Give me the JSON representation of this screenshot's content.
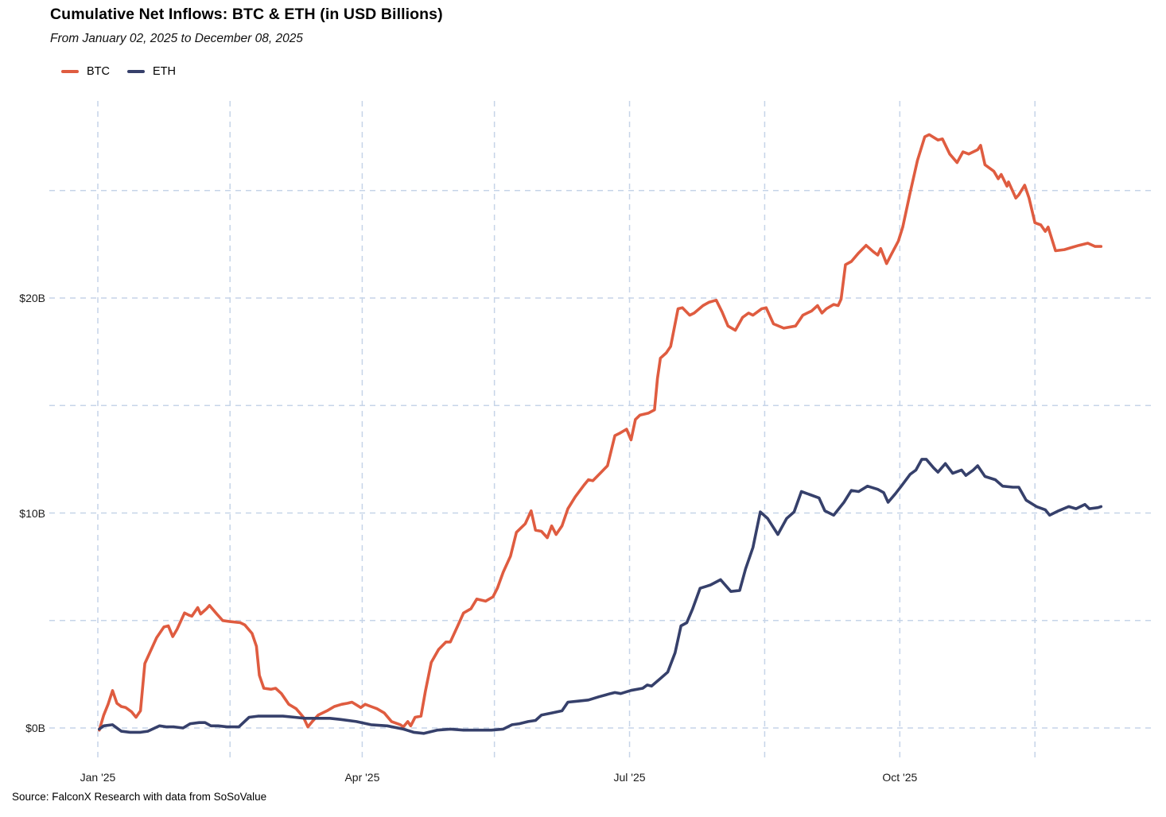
{
  "header": {
    "title": "Cumulative Net Inflows: BTC & ETH (in USD Billions)",
    "subtitle": "From January 02, 2025 to December 08, 2025"
  },
  "legend": [
    {
      "label": "BTC",
      "color": "#DF5C40"
    },
    {
      "label": "ETH",
      "color": "#36406B"
    }
  ],
  "footer": {
    "source": "Source: FalconX Research with data from SoSoValue"
  },
  "colors": {
    "gridline": "#C6D4E8",
    "background": "#FFFFFF"
  },
  "chart_data": {
    "type": "line",
    "title": "Cumulative Net Inflows: BTC & ETH (in USD Billions)",
    "subtitle": "From January 02, 2025 to December 08, 2025",
    "xlabel": "",
    "ylabel": "USD Billions",
    "x_unit": "days since 2025-01-01",
    "xlim": [
      0,
      341.5
    ],
    "ylim": [
      -1,
      28.5
    ],
    "grid": true,
    "grid_style": "dashed",
    "legend_position": "top-left",
    "x_ticks": [
      {
        "day": 0,
        "label": "Jan '25"
      },
      {
        "day": 90,
        "label": "Apr '25"
      },
      {
        "day": 181,
        "label": "Jul '25"
      },
      {
        "day": 273,
        "label": "Oct '25"
      }
    ],
    "x_gridline_days": [
      0,
      45,
      90,
      135,
      181,
      227,
      273,
      319
    ],
    "y_ticks": [
      {
        "value": 0,
        "label": "$0B"
      },
      {
        "value": 10,
        "label": "$10B"
      },
      {
        "value": 20,
        "label": "$20B"
      }
    ],
    "y_gridline_values": [
      0,
      5,
      10,
      15,
      20,
      25
    ],
    "series": [
      {
        "name": "BTC",
        "color": "#DF5C40",
        "points": [
          [
            0.5,
            -0.1
          ],
          [
            2,
            0.6
          ],
          [
            3.5,
            1.1
          ],
          [
            5,
            1.74
          ],
          [
            6.5,
            1.15
          ],
          [
            8,
            1.0
          ],
          [
            9.5,
            0.95
          ],
          [
            11.5,
            0.75
          ],
          [
            13,
            0.5
          ],
          [
            14.5,
            0.8
          ],
          [
            16,
            3.0
          ],
          [
            18,
            3.6
          ],
          [
            20,
            4.2
          ],
          [
            22.5,
            4.7
          ],
          [
            24,
            4.75
          ],
          [
            25.5,
            4.25
          ],
          [
            27,
            4.6
          ],
          [
            29.5,
            5.35
          ],
          [
            31,
            5.25
          ],
          [
            32,
            5.2
          ],
          [
            34,
            5.6
          ],
          [
            35,
            5.3
          ],
          [
            37,
            5.55
          ],
          [
            38,
            5.7
          ],
          [
            40.5,
            5.3
          ],
          [
            42.5,
            5.0
          ],
          [
            45,
            4.95
          ],
          [
            48.5,
            4.9
          ],
          [
            50,
            4.8
          ],
          [
            52.5,
            4.4
          ],
          [
            54,
            3.8
          ],
          [
            55,
            2.45
          ],
          [
            56.5,
            1.85
          ],
          [
            59,
            1.8
          ],
          [
            60.5,
            1.85
          ],
          [
            62.5,
            1.6
          ],
          [
            65,
            1.1
          ],
          [
            67.5,
            0.9
          ],
          [
            70,
            0.5
          ],
          [
            71.5,
            0.05
          ],
          [
            73,
            0.3
          ],
          [
            75,
            0.6
          ],
          [
            78,
            0.8
          ],
          [
            80.5,
            1.0
          ],
          [
            83,
            1.1
          ],
          [
            85,
            1.15
          ],
          [
            86.5,
            1.2
          ],
          [
            89.5,
            0.95
          ],
          [
            91,
            1.1
          ],
          [
            93,
            1.0
          ],
          [
            95,
            0.9
          ],
          [
            97.5,
            0.7
          ],
          [
            100,
            0.3
          ],
          [
            103,
            0.15
          ],
          [
            104,
            0.05
          ],
          [
            105.5,
            0.3
          ],
          [
            106.5,
            0.1
          ],
          [
            108,
            0.5
          ],
          [
            110,
            0.55
          ],
          [
            111.5,
            1.7
          ],
          [
            113.5,
            3.05
          ],
          [
            116,
            3.65
          ],
          [
            118.5,
            4.0
          ],
          [
            120,
            4.0
          ],
          [
            122.5,
            4.75
          ],
          [
            124.5,
            5.35
          ],
          [
            127,
            5.55
          ],
          [
            129,
            6.0
          ],
          [
            132,
            5.9
          ],
          [
            134.5,
            6.1
          ],
          [
            136,
            6.5
          ],
          [
            138,
            7.25
          ],
          [
            140.5,
            8.0
          ],
          [
            142.5,
            9.1
          ],
          [
            145.5,
            9.5
          ],
          [
            147.5,
            10.1
          ],
          [
            149,
            9.2
          ],
          [
            151,
            9.15
          ],
          [
            153,
            8.85
          ],
          [
            154.5,
            9.4
          ],
          [
            156,
            9.0
          ],
          [
            158,
            9.4
          ],
          [
            160,
            10.2
          ],
          [
            162.5,
            10.75
          ],
          [
            165.5,
            11.3
          ],
          [
            167,
            11.55
          ],
          [
            168.5,
            11.5
          ],
          [
            171,
            11.85
          ],
          [
            173.5,
            12.2
          ],
          [
            176,
            13.6
          ],
          [
            177.5,
            13.7
          ],
          [
            180,
            13.9
          ],
          [
            181.5,
            13.4
          ],
          [
            183,
            14.35
          ],
          [
            184.5,
            14.55
          ],
          [
            187.5,
            14.65
          ],
          [
            189.5,
            14.8
          ],
          [
            190.5,
            16.25
          ],
          [
            191.5,
            17.2
          ],
          [
            193.5,
            17.45
          ],
          [
            195,
            17.75
          ],
          [
            197.5,
            19.5
          ],
          [
            199,
            19.55
          ],
          [
            201.5,
            19.2
          ],
          [
            203,
            19.3
          ],
          [
            206,
            19.65
          ],
          [
            208,
            19.8
          ],
          [
            210.5,
            19.9
          ],
          [
            212.5,
            19.35
          ],
          [
            214.5,
            18.7
          ],
          [
            217,
            18.5
          ],
          [
            219.5,
            19.1
          ],
          [
            221.5,
            19.3
          ],
          [
            223,
            19.2
          ],
          [
            226,
            19.5
          ],
          [
            227.5,
            19.55
          ],
          [
            230,
            18.8
          ],
          [
            233.5,
            18.6
          ],
          [
            237.5,
            18.7
          ],
          [
            240,
            19.2
          ],
          [
            243,
            19.4
          ],
          [
            245,
            19.65
          ],
          [
            246.5,
            19.3
          ],
          [
            248,
            19.5
          ],
          [
            250.5,
            19.7
          ],
          [
            252,
            19.65
          ],
          [
            253,
            19.95
          ],
          [
            254.5,
            21.55
          ],
          [
            256.5,
            21.7
          ],
          [
            259,
            22.1
          ],
          [
            261.5,
            22.45
          ],
          [
            264,
            22.15
          ],
          [
            265.5,
            22.0
          ],
          [
            266.5,
            22.3
          ],
          [
            268.5,
            21.6
          ],
          [
            270,
            22.0
          ],
          [
            272.5,
            22.65
          ],
          [
            274,
            23.3
          ],
          [
            276.5,
            24.9
          ],
          [
            279,
            26.4
          ],
          [
            281.5,
            27.5
          ],
          [
            283,
            27.6
          ],
          [
            286,
            27.35
          ],
          [
            287.5,
            27.4
          ],
          [
            290,
            26.7
          ],
          [
            292.5,
            26.3
          ],
          [
            294.5,
            26.8
          ],
          [
            296.5,
            26.7
          ],
          [
            299.5,
            26.9
          ],
          [
            300.5,
            27.1
          ],
          [
            302,
            26.2
          ],
          [
            305,
            25.9
          ],
          [
            306.5,
            25.55
          ],
          [
            307.5,
            25.75
          ],
          [
            309.5,
            25.2
          ],
          [
            310,
            25.4
          ],
          [
            312.5,
            24.65
          ],
          [
            313.5,
            24.8
          ],
          [
            315.5,
            25.25
          ],
          [
            317,
            24.65
          ],
          [
            319,
            23.5
          ],
          [
            321,
            23.4
          ],
          [
            322.5,
            23.1
          ],
          [
            323.5,
            23.3
          ],
          [
            326,
            22.2
          ],
          [
            329,
            22.25
          ],
          [
            331.5,
            22.35
          ],
          [
            334,
            22.45
          ],
          [
            337,
            22.55
          ],
          [
            339.5,
            22.4
          ],
          [
            341.5,
            22.4
          ]
        ]
      },
      {
        "name": "ETH",
        "color": "#36406B",
        "points": [
          [
            0.5,
            -0.05
          ],
          [
            2,
            0.1
          ],
          [
            5,
            0.15
          ],
          [
            8,
            -0.15
          ],
          [
            11,
            -0.2
          ],
          [
            14.5,
            -0.2
          ],
          [
            17,
            -0.15
          ],
          [
            21,
            0.1
          ],
          [
            23.5,
            0.05
          ],
          [
            26,
            0.05
          ],
          [
            29,
            0.0
          ],
          [
            31.5,
            0.2
          ],
          [
            34.5,
            0.25
          ],
          [
            36.5,
            0.25
          ],
          [
            38.5,
            0.1
          ],
          [
            41,
            0.1
          ],
          [
            44,
            0.05
          ],
          [
            48,
            0.05
          ],
          [
            51.5,
            0.5
          ],
          [
            54.5,
            0.55
          ],
          [
            59,
            0.55
          ],
          [
            63,
            0.55
          ],
          [
            67,
            0.5
          ],
          [
            70.5,
            0.45
          ],
          [
            75,
            0.45
          ],
          [
            79,
            0.45
          ],
          [
            82.5,
            0.4
          ],
          [
            88,
            0.3
          ],
          [
            93,
            0.15
          ],
          [
            98.5,
            0.1
          ],
          [
            104,
            -0.05
          ],
          [
            107.5,
            -0.2
          ],
          [
            111,
            -0.25
          ],
          [
            115.5,
            -0.1
          ],
          [
            120,
            -0.05
          ],
          [
            124.5,
            -0.1
          ],
          [
            129,
            -0.1
          ],
          [
            134,
            -0.1
          ],
          [
            138,
            -0.05
          ],
          [
            141,
            0.15
          ],
          [
            143.5,
            0.2
          ],
          [
            146.5,
            0.3
          ],
          [
            149,
            0.35
          ],
          [
            151,
            0.6
          ],
          [
            154.5,
            0.7
          ],
          [
            158,
            0.8
          ],
          [
            160,
            1.2
          ],
          [
            163.5,
            1.25
          ],
          [
            167,
            1.3
          ],
          [
            170.5,
            1.45
          ],
          [
            174.5,
            1.6
          ],
          [
            176,
            1.65
          ],
          [
            178,
            1.6
          ],
          [
            181.5,
            1.75
          ],
          [
            185.5,
            1.85
          ],
          [
            187,
            2.0
          ],
          [
            188.5,
            1.95
          ],
          [
            191.5,
            2.3
          ],
          [
            194,
            2.6
          ],
          [
            196.5,
            3.5
          ],
          [
            198.5,
            4.75
          ],
          [
            200.5,
            4.9
          ],
          [
            202.5,
            5.55
          ],
          [
            205,
            6.5
          ],
          [
            208.5,
            6.65
          ],
          [
            212,
            6.9
          ],
          [
            215.5,
            6.35
          ],
          [
            218.5,
            6.4
          ],
          [
            220.5,
            7.4
          ],
          [
            223,
            8.4
          ],
          [
            225.5,
            10.05
          ],
          [
            228,
            9.75
          ],
          [
            231.5,
            9.0
          ],
          [
            234.5,
            9.75
          ],
          [
            237,
            10.05
          ],
          [
            239.5,
            11.0
          ],
          [
            242.5,
            10.85
          ],
          [
            245.5,
            10.7
          ],
          [
            247.5,
            10.1
          ],
          [
            250.5,
            9.9
          ],
          [
            254,
            10.5
          ],
          [
            256.5,
            11.05
          ],
          [
            259,
            11.0
          ],
          [
            262,
            11.25
          ],
          [
            265.5,
            11.1
          ],
          [
            267.5,
            10.95
          ],
          [
            269,
            10.5
          ],
          [
            271.5,
            10.9
          ],
          [
            273.5,
            11.25
          ],
          [
            276.5,
            11.8
          ],
          [
            278.5,
            12.0
          ],
          [
            280.5,
            12.5
          ],
          [
            282,
            12.5
          ],
          [
            284.5,
            12.1
          ],
          [
            286,
            11.9
          ],
          [
            288.5,
            12.3
          ],
          [
            291,
            11.85
          ],
          [
            294,
            12.0
          ],
          [
            295.5,
            11.75
          ],
          [
            298,
            12.0
          ],
          [
            299.5,
            12.2
          ],
          [
            302,
            11.7
          ],
          [
            305.5,
            11.55
          ],
          [
            308,
            11.25
          ],
          [
            311.5,
            11.2
          ],
          [
            313.5,
            11.2
          ],
          [
            316,
            10.6
          ],
          [
            319.5,
            10.3
          ],
          [
            322.5,
            10.15
          ],
          [
            324,
            9.9
          ],
          [
            327,
            10.1
          ],
          [
            330.5,
            10.3
          ],
          [
            333,
            10.2
          ],
          [
            336,
            10.4
          ],
          [
            337.5,
            10.2
          ],
          [
            340.5,
            10.25
          ],
          [
            341.5,
            10.3
          ]
        ]
      }
    ]
  }
}
